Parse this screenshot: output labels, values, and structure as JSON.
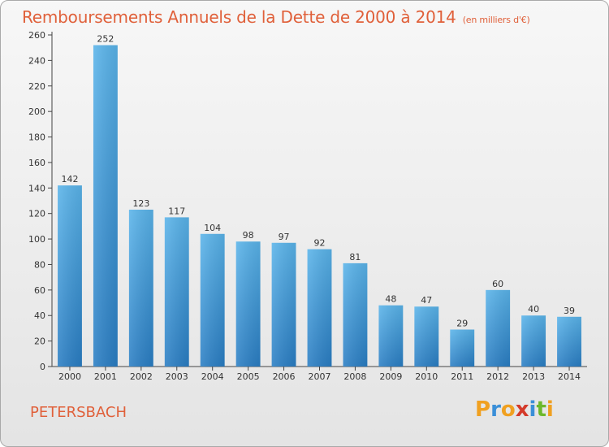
{
  "header": {
    "title": "Remboursements Annuels de la Dette de 2000 à 2014",
    "subtitle": "(en milliers d'€)"
  },
  "footer": {
    "town": "PETERSBACH",
    "logo_text": "Proxiti",
    "logo_letters": [
      "P",
      "r",
      "o",
      "x",
      "i",
      "t",
      "i"
    ],
    "logo_colors": [
      "#f0a020",
      "#3a8fd8",
      "#f0a020",
      "#d43a2a",
      "#3a8fd8",
      "#6cb82c",
      "#f0a020"
    ]
  },
  "colors": {
    "title": "#e0603a",
    "bar_top": "#5ab4ea",
    "bar_bottom": "#2a7ec4",
    "axis": "#333333"
  },
  "chart_data": {
    "type": "bar",
    "title": "Remboursements Annuels de la Dette de 2000 à 2014",
    "subtitle": "(en milliers d'€)",
    "xlabel": "",
    "ylabel": "",
    "categories": [
      "2000",
      "2001",
      "2002",
      "2003",
      "2004",
      "2005",
      "2006",
      "2007",
      "2008",
      "2009",
      "2010",
      "2011",
      "2012",
      "2013",
      "2014"
    ],
    "values": [
      142,
      252,
      123,
      117,
      104,
      98,
      97,
      92,
      81,
      48,
      47,
      29,
      60,
      40,
      39
    ],
    "ylim": [
      0,
      260
    ],
    "yticks": [
      0,
      20,
      40,
      60,
      80,
      100,
      120,
      140,
      160,
      180,
      200,
      220,
      240,
      260
    ],
    "grid": false,
    "data_labels": true
  }
}
